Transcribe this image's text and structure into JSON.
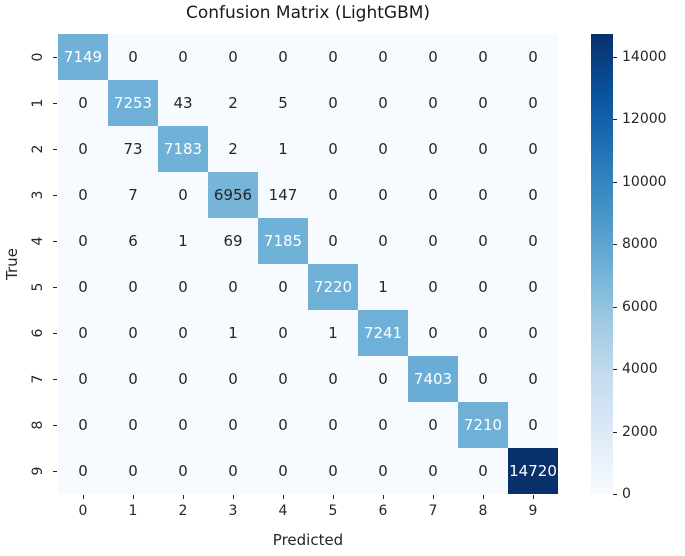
{
  "chart_data": {
    "type": "heatmap",
    "title": "Confusion Matrix (LightGBM)",
    "xlabel": "Predicted",
    "ylabel": "True",
    "x_tick_labels": [
      "0",
      "1",
      "2",
      "3",
      "4",
      "5",
      "6",
      "7",
      "8",
      "9"
    ],
    "y_tick_labels": [
      "0",
      "1",
      "2",
      "3",
      "4",
      "5",
      "6",
      "7",
      "8",
      "9"
    ],
    "matrix": [
      [
        7149,
        0,
        0,
        0,
        0,
        0,
        0,
        0,
        0,
        0
      ],
      [
        0,
        7253,
        43,
        2,
        5,
        0,
        0,
        0,
        0,
        0
      ],
      [
        0,
        73,
        7183,
        2,
        1,
        0,
        0,
        0,
        0,
        0
      ],
      [
        0,
        7,
        0,
        6956,
        147,
        0,
        0,
        0,
        0,
        0
      ],
      [
        0,
        6,
        1,
        69,
        7185,
        0,
        0,
        0,
        0,
        0
      ],
      [
        0,
        0,
        0,
        0,
        0,
        7220,
        1,
        0,
        0,
        0
      ],
      [
        0,
        0,
        0,
        1,
        0,
        1,
        7241,
        0,
        0,
        0
      ],
      [
        0,
        0,
        0,
        0,
        0,
        0,
        0,
        7403,
        0,
        0
      ],
      [
        0,
        0,
        0,
        0,
        0,
        0,
        0,
        0,
        7210,
        0
      ],
      [
        0,
        0,
        0,
        0,
        0,
        0,
        0,
        0,
        0,
        14720
      ]
    ],
    "vmin": 0,
    "vmax": 14720,
    "colormap": "Blues",
    "colormap_stops": [
      "#f7fbff",
      "#deebf7",
      "#c6dbef",
      "#9ecae1",
      "#6baed6",
      "#4292c6",
      "#2171b5",
      "#08519c",
      "#08306b"
    ],
    "colorbar_ticks": [
      0,
      2000,
      4000,
      6000,
      8000,
      10000,
      12000,
      14000
    ],
    "annotation_color_dark": "#262626",
    "annotation_color_light": "#ffffff",
    "grid": false,
    "legend_position": "right-colorbar"
  }
}
